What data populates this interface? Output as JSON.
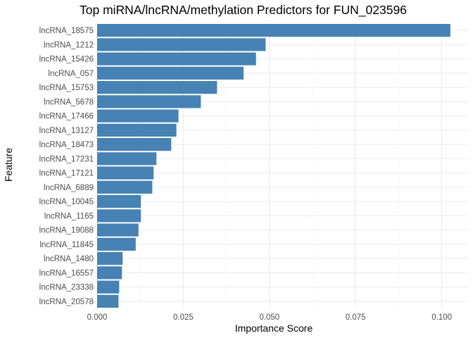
{
  "chart_data": {
    "type": "bar",
    "orientation": "horizontal",
    "title": "Top miRNA/lncRNA/methylation Predictors for FUN_023596",
    "xlabel": "Importance Score",
    "ylabel": "Feature",
    "xlim": [
      0,
      0.1075
    ],
    "x_ticks": [
      0,
      0.025,
      0.05,
      0.075,
      0.1
    ],
    "x_tick_labels": [
      "0.000",
      "0.025",
      "0.050",
      "0.075",
      "0.100"
    ],
    "grid": true,
    "bar_color": "#4682b4",
    "categories": [
      "lncRNA_18575",
      "lncRNA_1212",
      "lncRNA_15426",
      "lncRNA_057",
      "lncRNA_15753",
      "lncRNA_5678",
      "lncRNA_17466",
      "lncRNA_13127",
      "lncRNA_18473",
      "lncRNA_17231",
      "lncRNA_17121",
      "lncRNA_6889",
      "lncRNA_10045",
      "lncRNA_1165",
      "lncRNA_19088",
      "lncRNA_11845",
      "lncRNA_1480",
      "lncRNA_16557",
      "lncRNA_23338",
      "lncRNA_20578"
    ],
    "values": [
      0.1025,
      0.0489,
      0.0461,
      0.0425,
      0.0348,
      0.0301,
      0.0236,
      0.023,
      0.0215,
      0.0172,
      0.0164,
      0.016,
      0.0127,
      0.0127,
      0.012,
      0.0112,
      0.0074,
      0.0072,
      0.0064,
      0.0062
    ]
  }
}
